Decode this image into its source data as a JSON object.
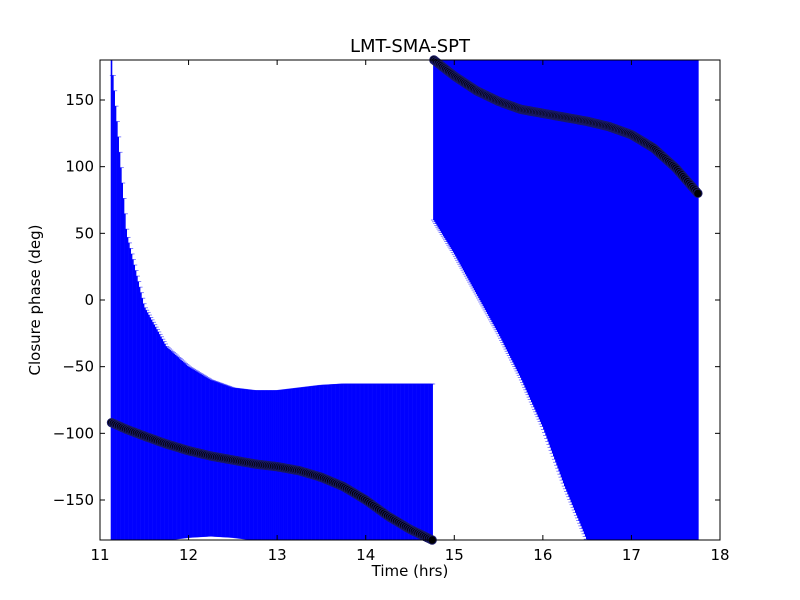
{
  "chart_data": {
    "type": "scatter",
    "title": "LMT-SMA-SPT",
    "xlabel": "Time (hrs)",
    "ylabel": "Closure phase (deg)",
    "xlim": [
      11,
      18
    ],
    "ylim": [
      -180,
      180
    ],
    "xticks": [
      11,
      12,
      13,
      14,
      15,
      16,
      17,
      18
    ],
    "yticks": [
      -150,
      -100,
      -50,
      0,
      50,
      100,
      150
    ],
    "yticklabels": [
      "−150",
      "−100",
      "−50",
      "0",
      "50",
      "100",
      "150"
    ],
    "grid": false,
    "legend": "none",
    "colors": {
      "errorbar": "#0000ff",
      "marker": "#000000",
      "marker_edge": "#1a1a66"
    },
    "segments": [
      {
        "x": [
          11.13,
          11.3,
          11.5,
          11.75,
          12.0,
          12.25,
          12.5,
          12.75,
          13.0,
          13.25,
          13.5,
          13.75,
          14.0,
          14.25,
          14.5,
          14.75
        ],
        "y": [
          -92,
          -97,
          -102,
          -108,
          -113,
          -117,
          -120,
          -123,
          -125,
          -128,
          -133,
          -140,
          -150,
          -162,
          -172,
          -180
        ],
        "err_low": [
          -180,
          -180,
          -180,
          -180,
          -178,
          -177,
          -178,
          -180,
          -180,
          -180,
          -180,
          -180,
          -180,
          -180,
          -180,
          -180
        ],
        "err_high": [
          180,
          50,
          -5,
          -35,
          -50,
          -60,
          -66,
          -68,
          -68,
          -66,
          -64,
          -63,
          -63,
          -63,
          -63,
          -63
        ]
      },
      {
        "x": [
          14.77,
          15.0,
          15.25,
          15.5,
          15.75,
          16.0,
          16.25,
          16.5,
          16.75,
          17.0,
          17.25,
          17.5,
          17.75
        ],
        "y": [
          180,
          168,
          157,
          149,
          143,
          140,
          137,
          134,
          130,
          124,
          114,
          99,
          80
        ],
        "err_low": [
          60,
          35,
          5,
          -25,
          -58,
          -95,
          -140,
          -180,
          -180,
          -180,
          -180,
          -180,
          -180
        ],
        "err_high": [
          180,
          180,
          180,
          180,
          180,
          180,
          180,
          180,
          180,
          180,
          180,
          180,
          180
        ]
      }
    ]
  }
}
